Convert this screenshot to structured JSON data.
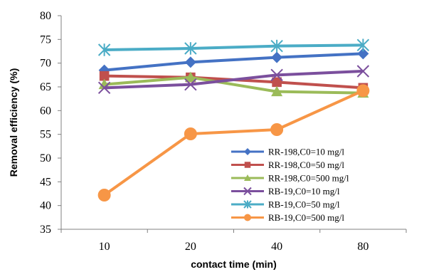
{
  "chart_data": {
    "type": "line",
    "title": "",
    "xlabel": "contact time (min)",
    "ylabel": "Removal efficiency (%)",
    "categories": [
      "10",
      "20",
      "40",
      "80"
    ],
    "ylim": [
      35,
      80
    ],
    "yticks": [
      35,
      40,
      45,
      50,
      55,
      60,
      65,
      70,
      75,
      80
    ],
    "grid": false,
    "legend_position": "bottom-right",
    "series": [
      {
        "name": "RR-198,C0=10  mg/l",
        "values": [
          68.5,
          70.2,
          71.2,
          72.0
        ],
        "color": "#4472C4",
        "marker": "diamond"
      },
      {
        "name": "RR-198,C0=50  mg/l",
        "values": [
          67.3,
          67.0,
          66.0,
          64.8
        ],
        "color": "#C0504D",
        "marker": "square"
      },
      {
        "name": "RR-198,C0=500  mg/l",
        "values": [
          65.5,
          67.0,
          64.0,
          63.7
        ],
        "color": "#9BBB59",
        "marker": "triangle"
      },
      {
        "name": "RB-19,C0=10  mg/l",
        "values": [
          64.8,
          65.5,
          67.5,
          68.3
        ],
        "color": "#7B4F9D",
        "marker": "x"
      },
      {
        "name": "RB-19,C0=50  mg/l",
        "values": [
          72.8,
          73.1,
          73.6,
          73.8
        ],
        "color": "#4BACC6",
        "marker": "star"
      },
      {
        "name": "RB-19,C0=500  mg/l",
        "values": [
          42.2,
          55.1,
          56.0,
          64.2
        ],
        "color": "#F79646",
        "marker": "circle"
      }
    ]
  }
}
